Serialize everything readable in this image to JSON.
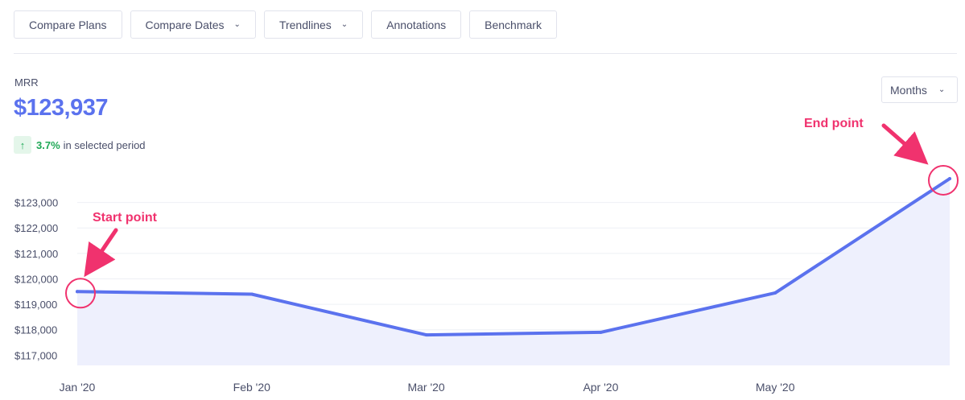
{
  "toolbar": {
    "buttons": [
      {
        "label": "Compare Plans",
        "dropdown": false
      },
      {
        "label": "Compare Dates",
        "dropdown": true
      },
      {
        "label": "Trendlines",
        "dropdown": true
      },
      {
        "label": "Annotations",
        "dropdown": false
      },
      {
        "label": "Benchmark",
        "dropdown": false
      }
    ]
  },
  "metric": {
    "name": "MRR",
    "value": "$123,937",
    "change_pct": "3.7%",
    "change_text": "in selected period"
  },
  "period_select": {
    "value": "Months"
  },
  "colors": {
    "line": "#5b72ee",
    "area": "#eef0fd",
    "annotation": "#f0326e",
    "positive": "#1fa856"
  },
  "annotations": {
    "start": "Start point",
    "end": "End point"
  },
  "chart_data": {
    "type": "area",
    "x": [
      "Jan '20",
      "Feb '20",
      "Mar '20",
      "Apr '20",
      "May '20",
      ""
    ],
    "x_tick_labels": [
      "Jan '20",
      "Feb '20",
      "Mar '20",
      "Apr '20",
      "May '20"
    ],
    "series": [
      {
        "values": [
          119500,
          119400,
          117800,
          117900,
          119450,
          123937
        ]
      }
    ],
    "y_ticks": [
      117000,
      118000,
      119000,
      120000,
      121000,
      122000,
      123000
    ],
    "y_tick_labels": [
      "$117,000",
      "$118,000",
      "$119,000",
      "$120,000",
      "$121,000",
      "$122,000",
      "$123,000"
    ],
    "ylim": [
      116600,
      123937
    ],
    "grid": true,
    "legend": "none"
  }
}
